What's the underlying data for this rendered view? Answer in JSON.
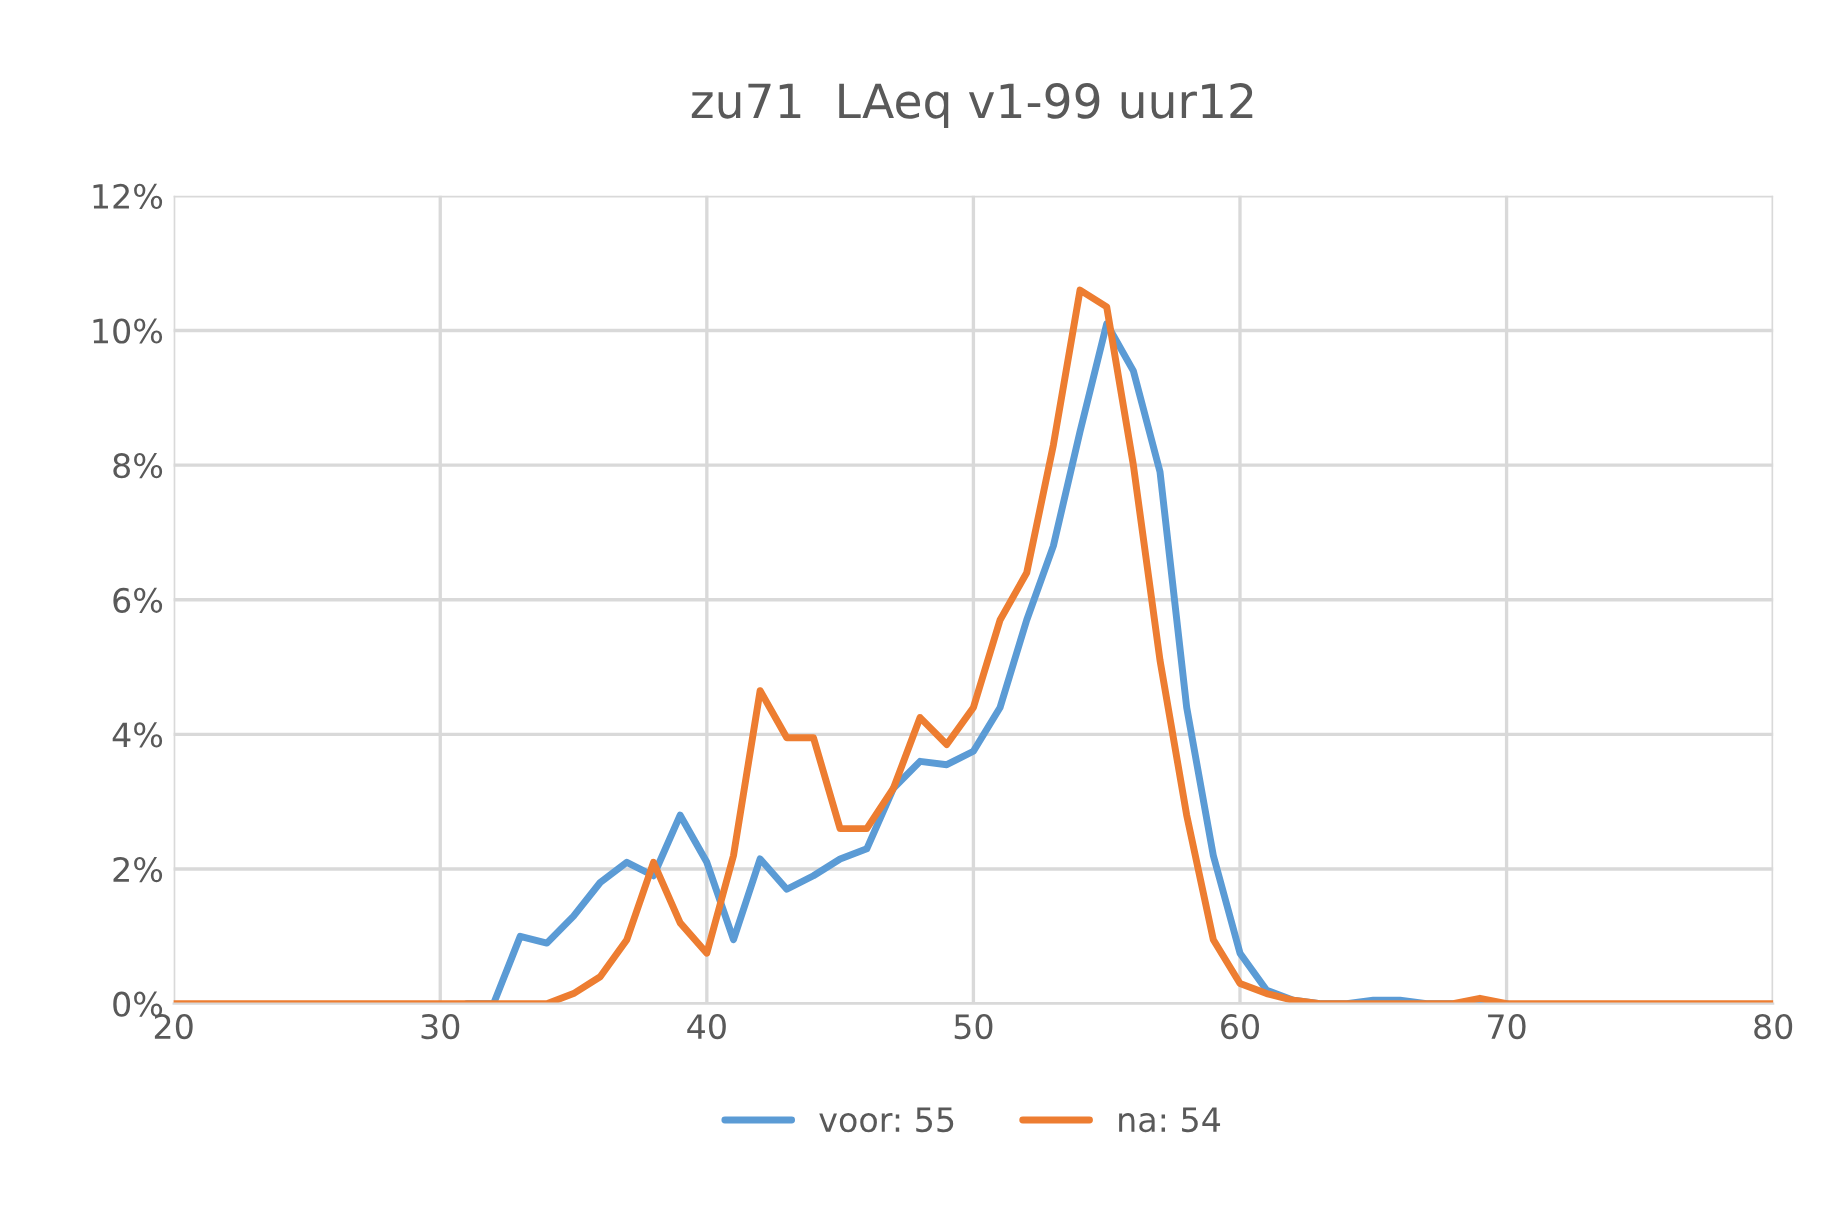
{
  "chart_data": {
    "type": "line",
    "title": "zu71  LAeq v1-99 uur12",
    "x": [
      20,
      21,
      22,
      23,
      24,
      25,
      26,
      27,
      28,
      29,
      30,
      31,
      32,
      33,
      34,
      35,
      36,
      37,
      38,
      39,
      40,
      41,
      42,
      43,
      44,
      45,
      46,
      47,
      48,
      49,
      50,
      51,
      52,
      53,
      54,
      55,
      56,
      57,
      58,
      59,
      60,
      61,
      62,
      63,
      64,
      65,
      66,
      67,
      68,
      69,
      70,
      71,
      72,
      73,
      74,
      75,
      76,
      77,
      78,
      79,
      80
    ],
    "series": [
      {
        "name": "voor: 55",
        "color": "#5b9bd5",
        "values": [
          null,
          null,
          null,
          null,
          null,
          null,
          null,
          null,
          null,
          null,
          null,
          0,
          0,
          1.0,
          0.9,
          1.3,
          1.8,
          2.1,
          1.9,
          2.8,
          2.1,
          0.95,
          2.15,
          1.7,
          1.9,
          2.15,
          2.3,
          3.2,
          3.6,
          3.55,
          3.75,
          4.4,
          5.7,
          6.8,
          8.5,
          10.1,
          9.4,
          7.9,
          4.4,
          2.2,
          0.75,
          0.2,
          0.05,
          0,
          0,
          0.05,
          0.05,
          0,
          0,
          0,
          0,
          null,
          null,
          null,
          null,
          null,
          null,
          null,
          null,
          null,
          null
        ]
      },
      {
        "name": "na: 54",
        "color": "#ed7d31",
        "values": [
          0,
          0,
          0,
          0,
          0,
          0,
          0,
          0,
          0,
          0,
          0,
          0,
          0,
          0,
          0,
          0.15,
          0.4,
          0.95,
          2.1,
          1.2,
          0.75,
          2.2,
          4.65,
          3.95,
          3.95,
          2.6,
          2.6,
          3.2,
          4.25,
          3.85,
          4.4,
          5.7,
          6.4,
          8.3,
          10.6,
          10.35,
          8.0,
          5.1,
          2.8,
          0.95,
          0.3,
          0.15,
          0.05,
          0,
          0,
          0,
          0,
          0,
          0,
          0.08,
          0,
          0,
          0,
          0,
          0,
          0,
          0,
          0,
          0,
          0,
          0
        ]
      }
    ],
    "xlim": [
      20,
      80
    ],
    "xticks": [
      20,
      30,
      40,
      50,
      60,
      70,
      80
    ],
    "ylim": [
      0,
      12
    ],
    "yticks": [
      {
        "value": 0,
        "label": "0%"
      },
      {
        "value": 2,
        "label": "2%"
      },
      {
        "value": 4,
        "label": "4%"
      },
      {
        "value": 6,
        "label": "6%"
      },
      {
        "value": 8,
        "label": "8%"
      },
      {
        "value": 10,
        "label": "10%"
      },
      {
        "value": 12,
        "label": "12%"
      }
    ],
    "grid": true,
    "legend": "bottom",
    "marker": "none",
    "line_style": "solid"
  }
}
